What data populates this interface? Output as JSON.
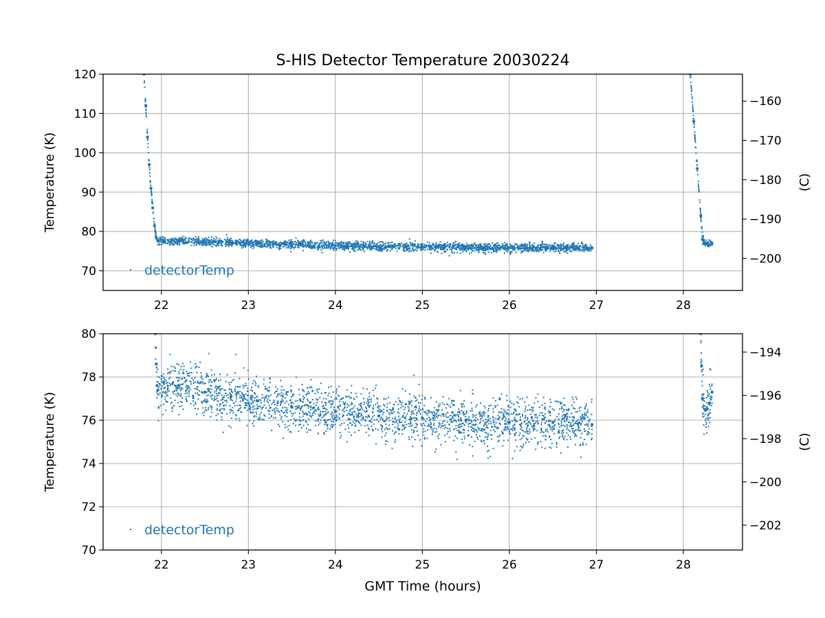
{
  "figure": {
    "title": "S-HIS Detector Temperature 20030224",
    "xlabel": "GMT Time (hours)"
  },
  "chart_data": [
    {
      "type": "scatter",
      "ylabel": "Temperature (K)",
      "ylabel_right": "(C)",
      "xlim": [
        21.33,
        28.68
      ],
      "ylim": [
        65.0,
        120.0
      ],
      "xticks": [
        22,
        23,
        24,
        25,
        26,
        27,
        28
      ],
      "yticks": [
        70,
        80,
        90,
        100,
        110,
        120
      ],
      "yticks_right": [
        -160,
        -170,
        -180,
        -190,
        -200
      ],
      "right_axis_offset": -273.15,
      "grid": true,
      "legend": {
        "location": "lower-left",
        "entries": [
          "detectorTemp"
        ]
      },
      "series": [
        {
          "name": "detectorTemp",
          "color": "#1f77b4",
          "x": [
            21.8,
            21.82,
            21.84,
            21.86,
            21.88,
            21.9,
            21.92,
            21.94,
            21.96,
            22.2,
            22.5,
            22.8,
            23.1,
            23.5,
            24.0,
            24.5,
            25.0,
            25.5,
            26.0,
            26.5,
            26.95,
            28.08,
            28.12,
            28.16,
            28.2,
            28.22,
            28.25,
            28.33
          ],
          "y": [
            120.0,
            112.0,
            104.0,
            97.0,
            91.0,
            86.0,
            81.5,
            78.5,
            77.6,
            77.6,
            77.3,
            77.1,
            76.9,
            76.6,
            76.4,
            76.2,
            76.1,
            76.0,
            75.9,
            75.9,
            75.8,
            120.0,
            108.0,
            96.0,
            84.0,
            78.0,
            77.0,
            77.0
          ]
        }
      ]
    },
    {
      "type": "scatter",
      "ylabel": "Temperature (K)",
      "ylabel_right": "(C)",
      "xlim": [
        21.33,
        28.68
      ],
      "ylim": [
        70.0,
        80.0
      ],
      "xticks": [
        22,
        23,
        24,
        25,
        26,
        27,
        28
      ],
      "yticks": [
        70,
        72,
        74,
        76,
        78,
        80
      ],
      "yticks_right": [
        -194,
        -196,
        -198,
        -200,
        -202
      ],
      "right_axis_offset": -273.15,
      "grid": true,
      "legend": {
        "location": "lower-left",
        "entries": [
          "detectorTemp"
        ]
      },
      "series": [
        {
          "name": "detectorTemp",
          "color": "#1f77b4",
          "x": [
            21.93,
            21.94,
            21.95,
            21.96,
            22.2,
            22.5,
            22.8,
            23.1,
            23.5,
            24.0,
            24.5,
            25.0,
            25.5,
            26.0,
            26.5,
            26.95,
            28.2,
            28.21,
            28.22,
            28.25,
            28.3,
            28.33
          ],
          "y": [
            80.0,
            78.6,
            77.6,
            77.4,
            77.6,
            77.3,
            77.1,
            76.9,
            76.6,
            76.4,
            76.2,
            76.1,
            76.0,
            75.9,
            75.9,
            75.8,
            80.0,
            78.5,
            77.0,
            76.5,
            76.8,
            77.3
          ]
        }
      ]
    }
  ]
}
